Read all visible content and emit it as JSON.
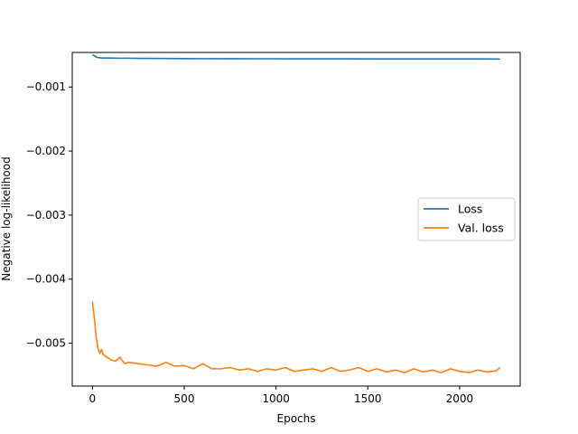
{
  "chart_data": {
    "type": "line",
    "title": "",
    "xlabel": "Epochs",
    "ylabel": "Negative log-likelihood",
    "xlim": [
      -110,
      2330
    ],
    "ylim": [
      -0.00567,
      -0.00046
    ],
    "xticks": [
      0,
      500,
      1000,
      1500,
      2000
    ],
    "xtick_labels": [
      "0",
      "500",
      "1000",
      "1500",
      "2000"
    ],
    "yticks": [
      -0.001,
      -0.002,
      -0.003,
      -0.004,
      -0.005
    ],
    "ytick_labels": [
      "−0.001",
      "−0.002",
      "−0.003",
      "−0.004",
      "−0.005"
    ],
    "grid": false,
    "legend_position": "center-right",
    "series": [
      {
        "name": "Loss",
        "color": "#1f77b4",
        "x": [
          0,
          10,
          20,
          30,
          50,
          75,
          100,
          150,
          200,
          250,
          300,
          400,
          500,
          600,
          700,
          800,
          900,
          1000,
          1100,
          1200,
          1300,
          1400,
          1500,
          1600,
          1700,
          1800,
          1900,
          2000,
          2100,
          2220
        ],
        "y": [
          -0.0005,
          -0.00051,
          -0.00053,
          -0.00054,
          -0.000545,
          -0.000547,
          -0.000548,
          -0.00055,
          -0.00055,
          -0.000552,
          -0.000553,
          -0.000555,
          -0.000556,
          -0.000557,
          -0.000558,
          -0.000558,
          -0.000559,
          -0.000559,
          -0.00056,
          -0.00056,
          -0.00056,
          -0.00056,
          -0.000561,
          -0.000561,
          -0.000561,
          -0.000562,
          -0.000562,
          -0.000562,
          -0.000562,
          -0.000563
        ]
      },
      {
        "name": "Val. loss",
        "color": "#ff7f0e",
        "x": [
          0,
          10,
          20,
          30,
          40,
          50,
          60,
          80,
          100,
          125,
          150,
          175,
          200,
          250,
          300,
          350,
          400,
          450,
          500,
          550,
          600,
          650,
          700,
          750,
          800,
          850,
          900,
          950,
          1000,
          1050,
          1100,
          1150,
          1200,
          1250,
          1300,
          1350,
          1400,
          1450,
          1500,
          1550,
          1600,
          1650,
          1700,
          1750,
          1800,
          1850,
          1900,
          1950,
          2000,
          2050,
          2100,
          2150,
          2200,
          2220
        ],
        "y": [
          -0.00435,
          -0.0046,
          -0.0049,
          -0.00508,
          -0.00516,
          -0.0051,
          -0.00518,
          -0.00522,
          -0.00526,
          -0.00528,
          -0.00522,
          -0.00532,
          -0.0053,
          -0.00532,
          -0.00534,
          -0.00536,
          -0.0053,
          -0.00536,
          -0.00535,
          -0.0054,
          -0.00532,
          -0.0054,
          -0.0054,
          -0.00538,
          -0.00542,
          -0.0054,
          -0.00544,
          -0.0054,
          -0.00542,
          -0.00538,
          -0.00544,
          -0.00542,
          -0.0054,
          -0.00544,
          -0.00538,
          -0.00544,
          -0.00542,
          -0.00538,
          -0.00544,
          -0.0054,
          -0.00545,
          -0.00542,
          -0.00546,
          -0.0054,
          -0.00545,
          -0.00542,
          -0.00546,
          -0.0054,
          -0.00544,
          -0.00546,
          -0.00542,
          -0.00545,
          -0.00543,
          -0.00538
        ]
      }
    ]
  }
}
